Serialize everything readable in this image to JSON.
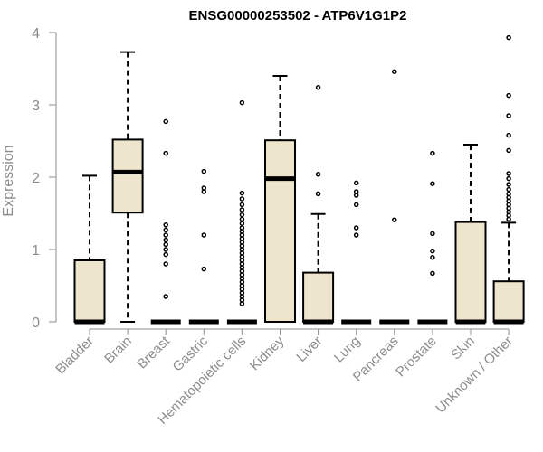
{
  "chart_data": {
    "type": "boxplot",
    "title": "ENSG00000253502 - ATP6V1G1P2",
    "ylabel": "Expression",
    "xlabel": "",
    "ylim": [
      0,
      4
    ],
    "yticks": [
      0,
      1,
      2,
      3,
      4
    ],
    "grid": false,
    "legend": "none",
    "colors": {
      "box_fill": "#ede6cc",
      "box_stroke": "#000000",
      "axis": "#8c8c8c",
      "text": "#8c8c8c"
    },
    "categories": [
      "Bladder",
      "Brain",
      "Breast",
      "Gastric",
      "Hematopoietic cells",
      "Kidney",
      "Liver",
      "Lung",
      "Pancreas",
      "Prostate",
      "Skin",
      "Unknown / Other"
    ],
    "boxes": [
      {
        "category": "Bladder",
        "whisker_low": 0,
        "q1": 0,
        "median": 0,
        "q3": 0.85,
        "whisker_high": 2.02,
        "outliers": []
      },
      {
        "category": "Brain",
        "whisker_low": 0,
        "q1": 1.51,
        "median": 2.07,
        "q3": 2.52,
        "whisker_high": 3.73,
        "outliers": []
      },
      {
        "category": "Breast",
        "whisker_low": 0,
        "q1": 0,
        "median": 0,
        "q3": 0,
        "whisker_high": 0,
        "outliers": [
          2.77,
          2.33,
          1.34,
          1.27,
          1.2,
          1.13,
          1.07,
          1.0,
          0.93,
          0.8,
          0.35
        ]
      },
      {
        "category": "Gastric",
        "whisker_low": 0,
        "q1": 0,
        "median": 0,
        "q3": 0,
        "whisker_high": 0,
        "outliers": [
          2.08,
          1.85,
          1.8,
          1.2,
          0.73
        ]
      },
      {
        "category": "Hematopoietic cells",
        "whisker_low": 0,
        "q1": 0,
        "median": 0,
        "q3": 0,
        "whisker_high": 0,
        "outliers": [
          3.03,
          1.78,
          1.7,
          1.62,
          1.55,
          1.48,
          1.42,
          1.36,
          1.3,
          1.25,
          1.2,
          1.15,
          1.1,
          1.05,
          1.0,
          0.95,
          0.9,
          0.85,
          0.8,
          0.75,
          0.7,
          0.65,
          0.6,
          0.55,
          0.5,
          0.45,
          0.4,
          0.35,
          0.3,
          0.25
        ]
      },
      {
        "category": "Kidney",
        "whisker_low": 0,
        "q1": 0,
        "median": 1.98,
        "q3": 2.51,
        "whisker_high": 3.4,
        "outliers": []
      },
      {
        "category": "Liver",
        "whisker_low": 0,
        "q1": 0,
        "median": 0,
        "q3": 0.68,
        "whisker_high": 1.49,
        "outliers": [
          3.24,
          2.04,
          1.77
        ]
      },
      {
        "category": "Lung",
        "whisker_low": 0,
        "q1": 0,
        "median": 0,
        "q3": 0,
        "whisker_high": 0,
        "outliers": [
          1.92,
          1.8,
          1.75,
          1.62,
          1.3,
          1.2
        ]
      },
      {
        "category": "Pancreas",
        "whisker_low": 0,
        "q1": 0,
        "median": 0,
        "q3": 0,
        "whisker_high": 0,
        "outliers": [
          3.46,
          1.41
        ]
      },
      {
        "category": "Prostate",
        "whisker_low": 0,
        "q1": 0,
        "median": 0,
        "q3": 0,
        "whisker_high": 0,
        "outliers": [
          2.33,
          1.91,
          1.22,
          0.98,
          0.89,
          0.67
        ]
      },
      {
        "category": "Skin",
        "whisker_low": 0,
        "q1": 0,
        "median": 0,
        "q3": 1.38,
        "whisker_high": 2.45,
        "outliers": []
      },
      {
        "category": "Unknown / Other",
        "whisker_low": 0,
        "q1": 0,
        "median": 0,
        "q3": 0.56,
        "whisker_high": 1.37,
        "outliers": [
          3.93,
          3.13,
          2.85,
          2.58,
          2.37,
          2.05,
          1.98,
          1.9,
          1.83,
          1.77,
          1.72,
          1.67,
          1.62,
          1.57,
          1.52,
          1.47,
          1.42
        ]
      }
    ]
  }
}
